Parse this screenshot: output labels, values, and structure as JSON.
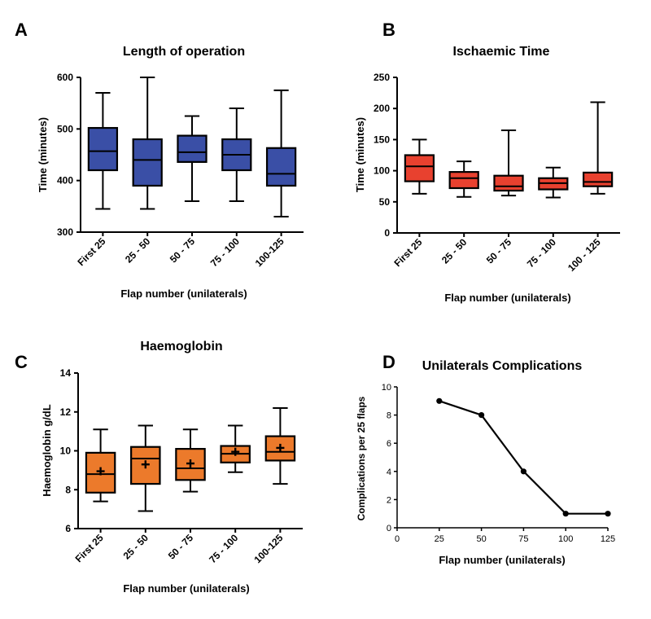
{
  "panel_labels": [
    "A",
    "B",
    "C",
    "D"
  ],
  "colors": {
    "blue": "#3a4fa6",
    "red": "#e8412f",
    "orange": "#ec7a2b",
    "line": "#000000"
  },
  "chart_data": [
    {
      "type": "box",
      "title": "Length of operation",
      "xlabel": "Flap number (unilaterals)",
      "ylabel": "Time (minutes)",
      "ylim": [
        300,
        600
      ],
      "yticks": [
        300,
        400,
        500,
        600
      ],
      "categories": [
        "First 25",
        "25 - 50",
        "50 - 75",
        "75 - 100",
        "100-125"
      ],
      "boxes": [
        {
          "min": 345,
          "q1": 420,
          "median": 457,
          "q3": 502,
          "max": 570
        },
        {
          "min": 345,
          "q1": 390,
          "median": 440,
          "q3": 480,
          "max": 600
        },
        {
          "min": 360,
          "q1": 436,
          "median": 455,
          "q3": 487,
          "max": 525
        },
        {
          "min": 360,
          "q1": 420,
          "median": 450,
          "q3": 480,
          "max": 540
        },
        {
          "min": 330,
          "q1": 390,
          "median": 413,
          "q3": 463,
          "max": 575
        }
      ]
    },
    {
      "type": "box",
      "title": "Ischaemic Time",
      "xlabel": "Flap number (unilaterals)",
      "ylabel": "Time (minutes)",
      "ylim": [
        0,
        250
      ],
      "yticks": [
        0,
        50,
        100,
        150,
        200,
        250
      ],
      "categories": [
        "First 25",
        "25 - 50",
        "50 - 75",
        "75 - 100",
        "100 - 125"
      ],
      "boxes": [
        {
          "min": 63,
          "q1": 83,
          "median": 107,
          "q3": 125,
          "max": 150
        },
        {
          "min": 58,
          "q1": 72,
          "median": 88,
          "q3": 98,
          "max": 115
        },
        {
          "min": 60,
          "q1": 68,
          "median": 75,
          "q3": 92,
          "max": 165
        },
        {
          "min": 57,
          "q1": 70,
          "median": 80,
          "q3": 88,
          "max": 105
        },
        {
          "min": 63,
          "q1": 75,
          "median": 82,
          "q3": 97,
          "max": 210
        }
      ]
    },
    {
      "type": "box",
      "title": "Haemoglobin",
      "xlabel": "Flap number (unilaterals)",
      "ylabel": "Haemoglobin g/dL",
      "ylim": [
        6,
        14
      ],
      "yticks": [
        6,
        8,
        10,
        12,
        14
      ],
      "categories": [
        "First 25",
        "25 - 50",
        "50 - 75",
        "75 - 100",
        "100-125"
      ],
      "boxes": [
        {
          "min": 7.4,
          "q1": 7.85,
          "median": 8.8,
          "q3": 9.9,
          "max": 11.1,
          "mean": 8.95
        },
        {
          "min": 6.9,
          "q1": 8.3,
          "median": 9.6,
          "q3": 10.2,
          "max": 11.3,
          "mean": 9.3
        },
        {
          "min": 7.9,
          "q1": 8.5,
          "median": 9.1,
          "q3": 10.1,
          "max": 11.1,
          "mean": 9.35
        },
        {
          "min": 8.9,
          "q1": 9.4,
          "median": 9.85,
          "q3": 10.25,
          "max": 11.3,
          "mean": 9.95
        },
        {
          "min": 8.3,
          "q1": 9.5,
          "median": 9.95,
          "q3": 10.75,
          "max": 12.2,
          "mean": 10.15
        }
      ]
    },
    {
      "type": "line",
      "title": "Unilaterals Complications",
      "xlabel": "Flap number (unilaterals)",
      "ylabel": "Complications per 25 flaps",
      "xlim": [
        0,
        125
      ],
      "ylim": [
        0,
        10
      ],
      "xticks": [
        0,
        25,
        50,
        75,
        100,
        125
      ],
      "yticks": [
        0,
        2,
        4,
        6,
        8,
        10
      ],
      "x": [
        25,
        50,
        75,
        100,
        125
      ],
      "y": [
        9,
        8,
        4,
        1,
        1
      ]
    }
  ]
}
